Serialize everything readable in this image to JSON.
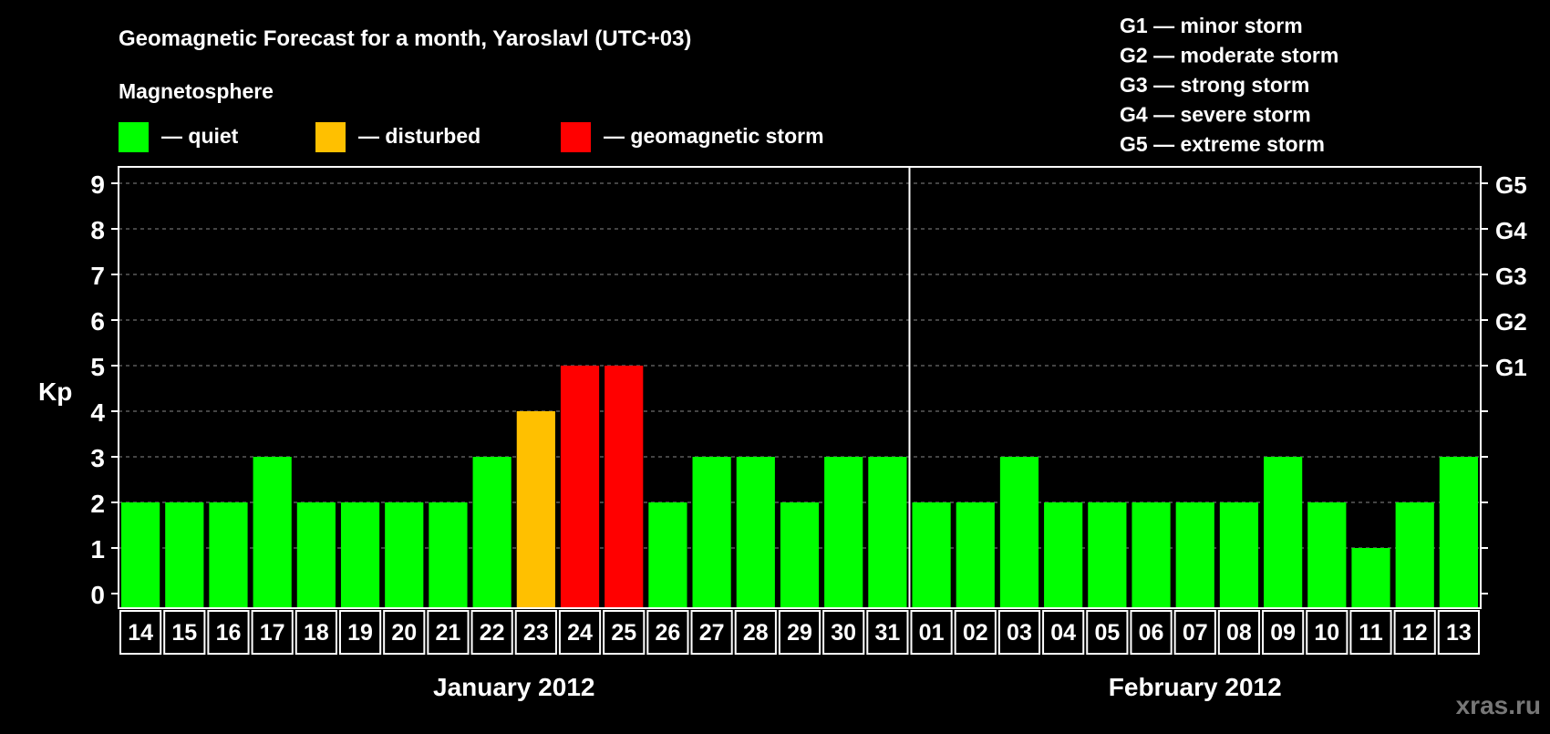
{
  "chart_data": {
    "type": "bar",
    "title": "Geomagnetic Forecast for a month, Yaroslavl (UTC+03)",
    "legend_title": "Magnetosphere",
    "legend": [
      {
        "label": "— quiet",
        "color": "#00ff00"
      },
      {
        "label": "— disturbed",
        "color": "#ffc000"
      },
      {
        "label": "— geomagnetic storm",
        "color": "#ff0000"
      }
    ],
    "storm_scale": [
      "G1 — minor storm",
      "G2 — moderate storm",
      "G3 — strong storm",
      "G4 — severe storm",
      "G5 — extreme storm"
    ],
    "ylabel": "Kp",
    "ylim": [
      0,
      9
    ],
    "yticks": [
      "0",
      "1",
      "2",
      "3",
      "4",
      "5",
      "6",
      "7",
      "8",
      "9"
    ],
    "right_ticks": [
      {
        "kp": 5,
        "label": "G1"
      },
      {
        "kp": 6,
        "label": "G2"
      },
      {
        "kp": 7,
        "label": "G3"
      },
      {
        "kp": 8,
        "label": "G4"
      },
      {
        "kp": 9,
        "label": "G5"
      }
    ],
    "months": [
      "January 2012",
      "February 2012"
    ],
    "categories": [
      "14",
      "15",
      "16",
      "17",
      "18",
      "19",
      "20",
      "21",
      "22",
      "23",
      "24",
      "25",
      "26",
      "27",
      "28",
      "29",
      "30",
      "31",
      "01",
      "02",
      "03",
      "04",
      "05",
      "06",
      "07",
      "08",
      "09",
      "10",
      "11",
      "12",
      "13"
    ],
    "values": [
      2,
      2,
      2,
      3,
      2,
      2,
      2,
      2,
      3,
      4,
      5,
      5,
      2,
      3,
      3,
      2,
      3,
      3,
      2,
      2,
      3,
      2,
      2,
      2,
      2,
      2,
      3,
      2,
      1,
      2,
      3
    ],
    "colors": {
      "quiet": "#00ff00",
      "disturbed": "#ffc000",
      "storm": "#ff0000"
    },
    "grid": true
  },
  "watermark": "xras.ru"
}
